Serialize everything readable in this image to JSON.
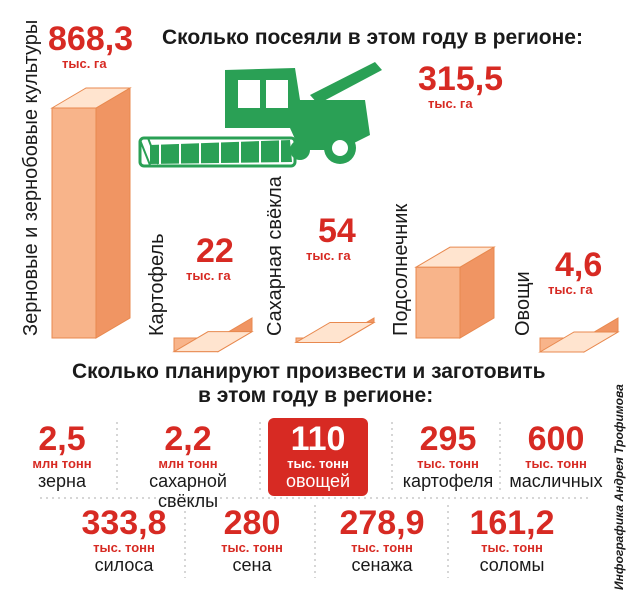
{
  "chart_data": {
    "type": "bar",
    "title": "Сколько посеяли в этом году в регионе:",
    "unit": "тыс. га",
    "categories": [
      "Зерновые и зернобовые культуры",
      "Картофель",
      "Сахарная свёкла",
      "Подсолнечник",
      "Овощи"
    ],
    "values": [
      868.3,
      22,
      54,
      315.5,
      4.6
    ],
    "value_labels": [
      "868,3",
      "22",
      "54",
      "315,5",
      "4,6"
    ]
  },
  "colors": {
    "accent": "#d72a23",
    "bar_front": "#f8b48a",
    "bar_top": "#ffe4cf",
    "bar_side": "#f09563",
    "tractor": "#2aa055"
  },
  "icons": {
    "harvester": "combine-harvester-icon"
  },
  "production": {
    "title_line1": "Сколько планируют произвести и заготовить",
    "title_line2": "в этом году в регионе:",
    "row1": [
      {
        "value": "2,5",
        "unit": "млн тонн",
        "label": "зерна"
      },
      {
        "value": "2,2",
        "unit": "млн тонн",
        "label": "сахарной свёклы"
      },
      {
        "value": "110",
        "unit": "тыс. тонн",
        "label": "овощей"
      },
      {
        "value": "295",
        "unit": "тыс. тонн",
        "label": "картофеля"
      },
      {
        "value": "600",
        "unit": "тыс. тонн",
        "label": "масличных"
      }
    ],
    "row2": [
      {
        "value": "333,8",
        "unit": "тыс. тонн",
        "label": "силоса"
      },
      {
        "value": "280",
        "unit": "тыс. тонн",
        "label": "сена"
      },
      {
        "value": "278,9",
        "unit": "тыс. тонн",
        "label": "сенажа"
      },
      {
        "value": "161,2",
        "unit": "тыс. тонн",
        "label": "соломы"
      }
    ]
  },
  "credit": "Инфографика Андрея Трофимова"
}
